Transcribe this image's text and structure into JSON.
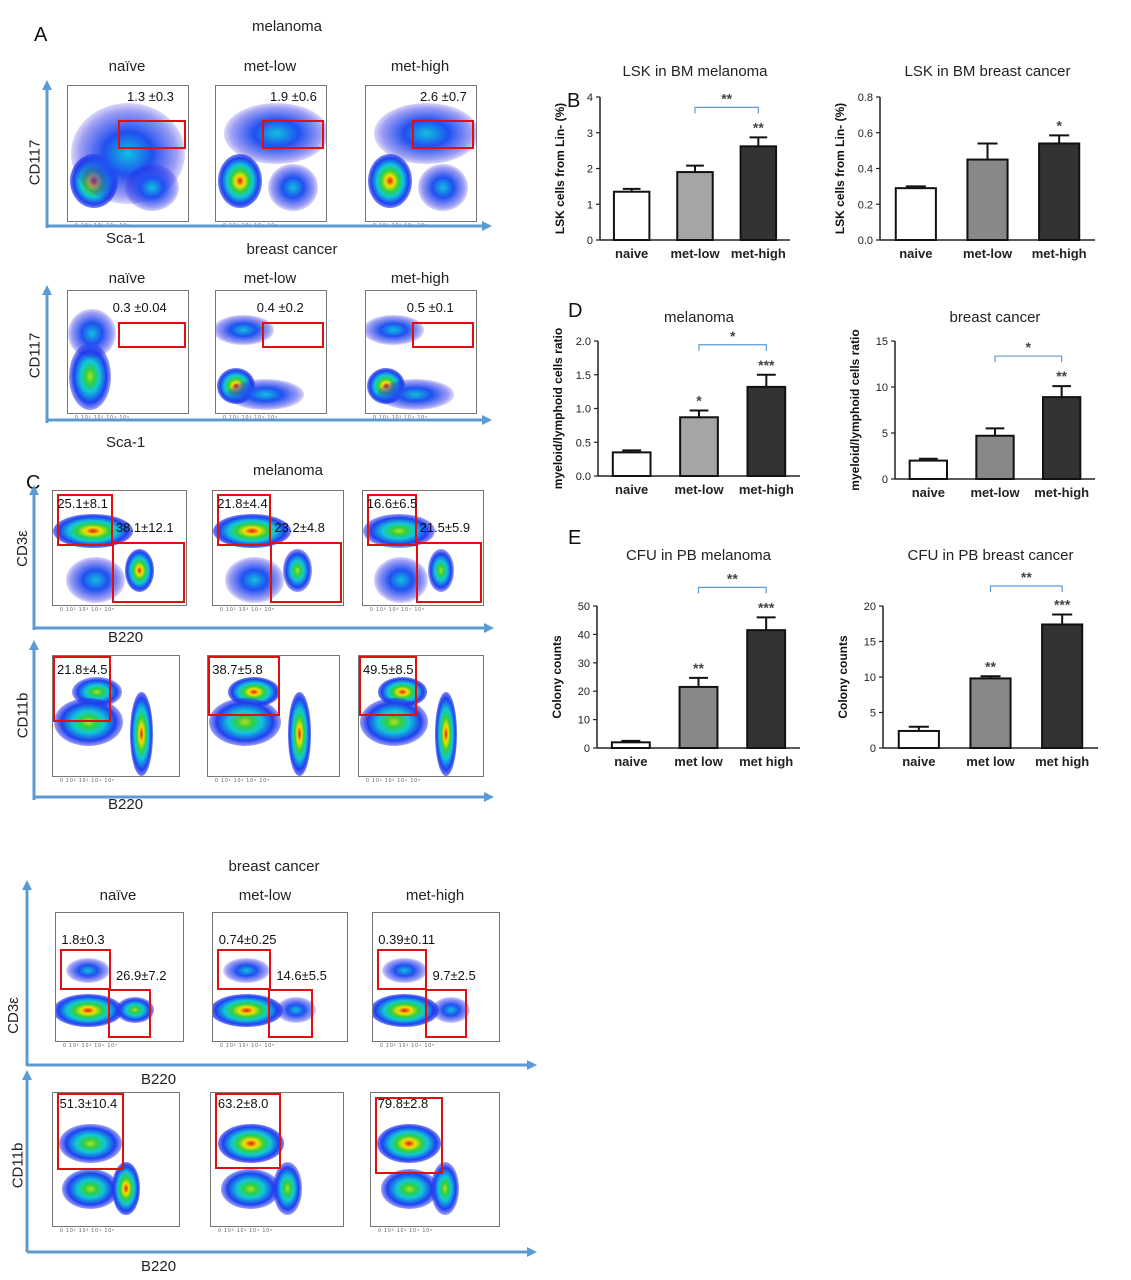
{
  "panel_letters": {
    "A": "A",
    "B": "B",
    "C": "C",
    "D": "D",
    "E": "E"
  },
  "flow": {
    "A_melanoma": {
      "title": "melanoma",
      "columns": [
        "naïve",
        "met-low",
        "met-high"
      ],
      "gates": [
        "1.3 ±0.3",
        "1.9 ±0.6",
        "2.6 ±0.7"
      ],
      "ylabel": "CD117",
      "xlabel": "Sca-1"
    },
    "A_breast": {
      "title": "breast cancer",
      "columns": [
        "naïve",
        "met-low",
        "met-high"
      ],
      "gates": [
        "0.3 ±0.04",
        "0.4 ±0.2",
        "0.5 ±0.1"
      ],
      "ylabel": "CD117",
      "xlabel": "Sca-1"
    },
    "C_melanoma": {
      "title": "melanoma",
      "row1": {
        "gates_t": [
          "25.1±8.1",
          "21.8±4.4",
          "16.6±6.5"
        ],
        "gates_b": [
          "38.1±12.1",
          "23.2±4.8",
          "21.5±5.9"
        ],
        "ylabel": "CD3ε",
        "xlabel": "B220"
      },
      "row2": {
        "gates": [
          "21.8±4.5",
          "38.7±5.8",
          "49.5±8.5"
        ],
        "ylabel": "CD11b",
        "xlabel": "B220"
      }
    },
    "C_breast": {
      "title": "breast cancer",
      "columns": [
        "naïve",
        "met-low",
        "met-high"
      ],
      "row1": {
        "gates_t": [
          "1.8±0.3",
          "0.74±0.25",
          "0.39±0.11"
        ],
        "gates_b": [
          "26.9±7.2",
          "14.6±5.5",
          "9.7±2.5"
        ],
        "ylabel": "CD3ε",
        "xlabel": "B220"
      },
      "row2": {
        "gates": [
          "51.3±10.4",
          "63.2±8.0",
          "79.8±2.8"
        ],
        "ylabel": "CD11b",
        "xlabel": "B220"
      }
    },
    "tick_labels": "0  10²   10³   10⁴   10⁵"
  },
  "colors": {
    "gate": "#e01010",
    "axis_arrow": "#5b9bd5",
    "bracket": "#5b9bd5",
    "naive": "#ffffff",
    "met_low_light": "#a5a5a5",
    "met_low": "#888888",
    "met_high": "#333333"
  },
  "chart_data": [
    {
      "id": "B1",
      "type": "bar",
      "title": "LSK in BM  melanoma",
      "ylabel": "LSK cells from Lin- (%)",
      "categories": [
        "naive",
        "met-low",
        "met-high"
      ],
      "values": [
        1.35,
        1.9,
        2.62
      ],
      "errors": [
        0.08,
        0.18,
        0.25
      ],
      "ylim": [
        0,
        4
      ],
      "yticks": [
        "0",
        "1",
        "2",
        "3",
        "4"
      ],
      "significance": [
        "",
        "",
        "**"
      ],
      "bracket": {
        "from": "met-low",
        "to": "met-high",
        "label": "**"
      }
    },
    {
      "id": "B2",
      "type": "bar",
      "title": "LSK in BM  breast cancer",
      "ylabel": "LSK cells from Lin- (%)",
      "categories": [
        "naive",
        "met-low",
        "met-high"
      ],
      "values": [
        0.29,
        0.45,
        0.54
      ],
      "errors": [
        0.01,
        0.09,
        0.045
      ],
      "ylim": [
        0,
        0.8
      ],
      "yticks": [
        "0.0",
        "0.2",
        "0.4",
        "0.6",
        "0.8"
      ],
      "significance": [
        "",
        "",
        "*"
      ],
      "bracket": null
    },
    {
      "id": "D1",
      "type": "bar",
      "title": "melanoma",
      "ylabel": "myeloid/lymphoid cells ratio",
      "categories": [
        "naive",
        "met-low",
        "met-high"
      ],
      "values": [
        0.35,
        0.87,
        1.32
      ],
      "errors": [
        0.03,
        0.1,
        0.18
      ],
      "ylim": [
        0,
        2
      ],
      "yticks": [
        "0.0",
        "0.5",
        "1.0",
        "1.5",
        "2.0"
      ],
      "significance": [
        "",
        "*",
        "***"
      ],
      "bracket": {
        "from": "met-low",
        "to": "met-high",
        "label": "*"
      }
    },
    {
      "id": "D2",
      "type": "bar",
      "title": "breast cancer",
      "ylabel": "myeloid/lymphoid cells ratio",
      "categories": [
        "naive",
        "met-low",
        "met-high"
      ],
      "values": [
        2.0,
        4.7,
        8.9
      ],
      "errors": [
        0.2,
        0.8,
        1.2
      ],
      "ylim": [
        0,
        15
      ],
      "yticks": [
        "0",
        "5",
        "10",
        "15"
      ],
      "significance": [
        "",
        "",
        "**"
      ],
      "bracket": {
        "from": "met-low",
        "to": "met-high",
        "label": "*"
      }
    },
    {
      "id": "E1",
      "type": "bar",
      "title": "CFU in PB melanoma",
      "ylabel": "Colony counts",
      "categories": [
        "naive",
        "met low",
        "met high"
      ],
      "values": [
        2,
        21.5,
        41.5
      ],
      "errors": [
        0.5,
        3.2,
        4.5
      ],
      "ylim": [
        0,
        50
      ],
      "yticks": [
        "0",
        "10",
        "20",
        "30",
        "40",
        "50"
      ],
      "significance": [
        "",
        "**",
        "***"
      ],
      "bracket": {
        "from": "met low",
        "to": "met high",
        "label": "**"
      }
    },
    {
      "id": "E2",
      "type": "bar",
      "title": "CFU in PB breast cancer",
      "ylabel": "Colony counts",
      "categories": [
        "naive",
        "met low",
        "met high"
      ],
      "values": [
        2.4,
        9.8,
        17.4
      ],
      "errors": [
        0.6,
        0.3,
        1.4
      ],
      "ylim": [
        0,
        20
      ],
      "yticks": [
        "0",
        "5",
        "10",
        "15",
        "20"
      ],
      "significance": [
        "",
        "**",
        "***"
      ],
      "bracket": {
        "from": "met low",
        "to": "met high",
        "label": "**"
      }
    }
  ]
}
